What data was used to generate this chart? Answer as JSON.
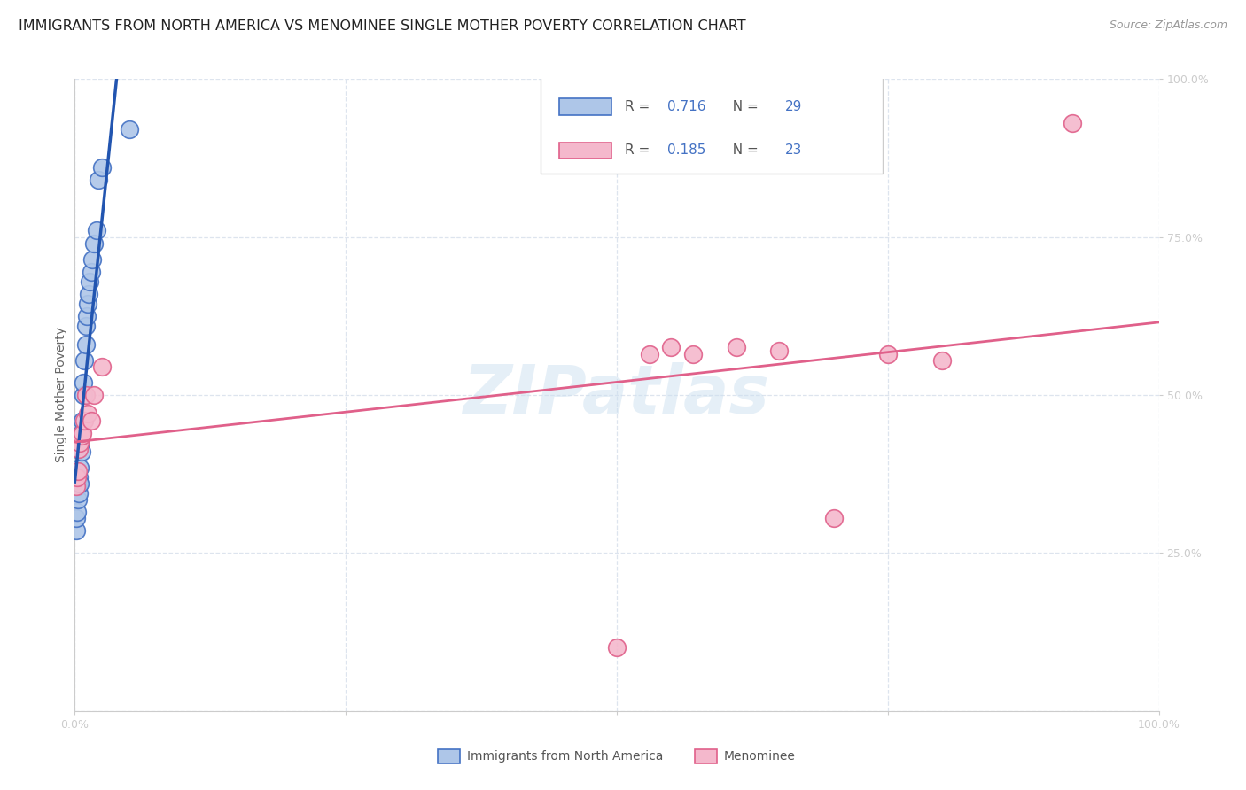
{
  "title": "IMMIGRANTS FROM NORTH AMERICA VS MENOMINEE SINGLE MOTHER POVERTY CORRELATION CHART",
  "source": "Source: ZipAtlas.com",
  "ylabel": "Single Mother Poverty",
  "blue_R": 0.716,
  "blue_N": 29,
  "pink_R": 0.185,
  "pink_N": 23,
  "blue_color": "#aec6e8",
  "blue_edge_color": "#4472c4",
  "blue_line_color": "#2255b0",
  "pink_color": "#f4b8cc",
  "pink_edge_color": "#e0608a",
  "pink_line_color": "#e0608a",
  "blue_x": [
    0.001,
    0.001,
    0.002,
    0.003,
    0.003,
    0.004,
    0.004,
    0.005,
    0.005,
    0.005,
    0.006,
    0.006,
    0.007,
    0.008,
    0.008,
    0.009,
    0.01,
    0.01,
    0.011,
    0.012,
    0.013,
    0.014,
    0.015,
    0.016,
    0.018,
    0.02,
    0.022,
    0.025,
    0.05
  ],
  "blue_y": [
    0.285,
    0.305,
    0.315,
    0.335,
    0.355,
    0.345,
    0.37,
    0.36,
    0.385,
    0.42,
    0.41,
    0.44,
    0.46,
    0.5,
    0.52,
    0.555,
    0.58,
    0.61,
    0.625,
    0.645,
    0.66,
    0.68,
    0.695,
    0.715,
    0.74,
    0.76,
    0.84,
    0.86,
    0.92
  ],
  "pink_x": [
    0.001,
    0.002,
    0.003,
    0.004,
    0.005,
    0.006,
    0.007,
    0.009,
    0.01,
    0.012,
    0.015,
    0.018,
    0.025,
    0.5,
    0.53,
    0.55,
    0.57,
    0.61,
    0.65,
    0.7,
    0.75,
    0.8,
    0.92
  ],
  "pink_y": [
    0.355,
    0.37,
    0.38,
    0.415,
    0.425,
    0.435,
    0.44,
    0.46,
    0.5,
    0.47,
    0.46,
    0.5,
    0.545,
    0.1,
    0.565,
    0.575,
    0.565,
    0.575,
    0.57,
    0.305,
    0.565,
    0.555,
    0.93
  ],
  "watermark": "ZIPatlas",
  "background_color": "#ffffff",
  "grid_color": "#dde4ee",
  "title_fontsize": 11.5,
  "source_fontsize": 9,
  "axis_label_fontsize": 10,
  "tick_label_fontsize": 9,
  "right_tick_color": "#4472c4",
  "legend_R_color": "#555555",
  "legend_N_color": "#4472c4",
  "legend_val_color": "#4472c4"
}
